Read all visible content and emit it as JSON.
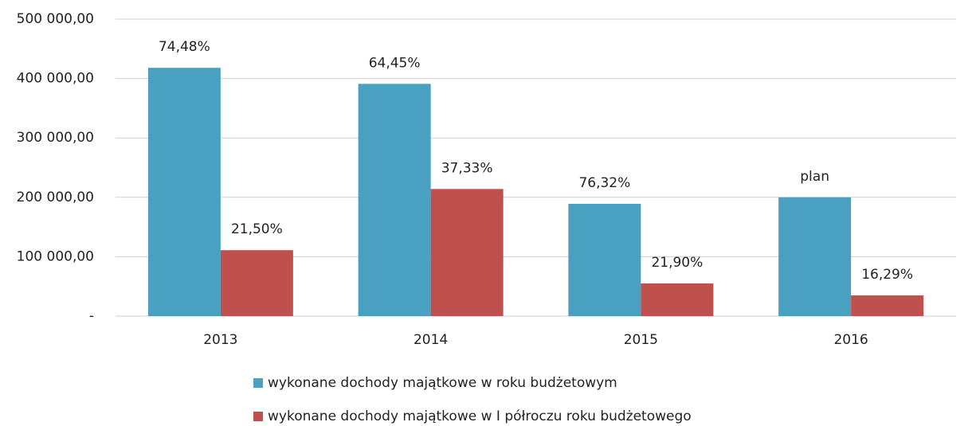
{
  "chart_data": {
    "type": "bar",
    "categories": [
      "2013",
      "2014",
      "2015",
      "2016"
    ],
    "series": [
      {
        "name": "wykonane dochody majątkowe w roku budżetowym",
        "color": "#4aa0c0",
        "values": [
          418000,
          391000,
          189000,
          200000
        ],
        "bar_labels": [
          "74,48%",
          "64,45%",
          "76,32%",
          "plan"
        ]
      },
      {
        "name": "wykonane dochody majątkowe w I półroczu roku budżetowego",
        "color": "#c0504d",
        "values": [
          111000,
          214000,
          55000,
          35000
        ],
        "bar_labels": [
          "21,50%",
          "37,33%",
          "21,90%",
          "16,29%"
        ]
      }
    ],
    "ylim": [
      0,
      500000
    ],
    "yticks": [
      {
        "value": 0,
        "label": "-"
      },
      {
        "value": 100000,
        "label": "100 000,00"
      },
      {
        "value": 200000,
        "label": "200 000,00"
      },
      {
        "value": 300000,
        "label": "300 000,00"
      },
      {
        "value": 400000,
        "label": "400 000,00"
      },
      {
        "value": 500000,
        "label": "500 000,00"
      }
    ],
    "grid": true
  }
}
